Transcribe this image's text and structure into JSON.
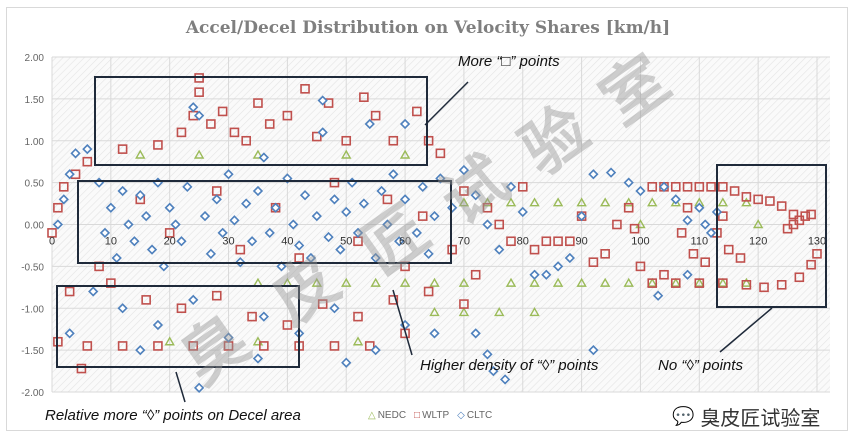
{
  "chart_data": {
    "type": "scatter",
    "title": "Accel/Decel Distribution on Velocity Shares [km/h]",
    "xlabel": "",
    "ylabel": "",
    "xlim": [
      0,
      130
    ],
    "ylim": [
      -2,
      2
    ],
    "x_ticks": [
      "0",
      "10",
      "20",
      "30",
      "40",
      "50",
      "60",
      "70",
      "80",
      "90",
      "100",
      "110",
      "120",
      "130"
    ],
    "y_ticks": [
      "2.00",
      "1.50",
      "1.00",
      "0.50",
      "0.00",
      "-0.50",
      "-1.00",
      "-1.50",
      "-2.00"
    ],
    "grid": true,
    "legend_position": "bottom",
    "series": [
      {
        "name": "NEDC",
        "marker": "triangle",
        "color": "#9bbb59",
        "points": [
          [
            15,
            0.83
          ],
          [
            25,
            0.83
          ],
          [
            35,
            0.83
          ],
          [
            50,
            0.83
          ],
          [
            60,
            0.83
          ],
          [
            70,
            0.26
          ],
          [
            74,
            0.26
          ],
          [
            78,
            0.26
          ],
          [
            82,
            0.26
          ],
          [
            86,
            0.26
          ],
          [
            90,
            0.26
          ],
          [
            94,
            0.26
          ],
          [
            98,
            0.26
          ],
          [
            102,
            0.26
          ],
          [
            106,
            0.26
          ],
          [
            110,
            0.26
          ],
          [
            114,
            0.26
          ],
          [
            118,
            0.26
          ],
          [
            100,
            0.0
          ],
          [
            120,
            0.0
          ],
          [
            35,
            -0.7
          ],
          [
            40,
            -0.7
          ],
          [
            45,
            -0.7
          ],
          [
            50,
            -0.7
          ],
          [
            55,
            -0.7
          ],
          [
            60,
            -0.7
          ],
          [
            65,
            -0.7
          ],
          [
            70,
            -0.7
          ],
          [
            78,
            -0.7
          ],
          [
            82,
            -0.7
          ],
          [
            86,
            -0.7
          ],
          [
            90,
            -0.7
          ],
          [
            94,
            -0.7
          ],
          [
            98,
            -0.7
          ],
          [
            102,
            -0.7
          ],
          [
            106,
            -0.7
          ],
          [
            110,
            -0.7
          ],
          [
            114,
            -0.7
          ],
          [
            118,
            -0.7
          ],
          [
            65,
            -1.05
          ],
          [
            70,
            -1.05
          ],
          [
            76,
            -1.05
          ],
          [
            82,
            -1.05
          ],
          [
            20,
            -1.4
          ],
          [
            35,
            -1.4
          ],
          [
            52,
            -1.4
          ]
        ]
      },
      {
        "name": "WLTP",
        "marker": "square",
        "color": "#c0504d",
        "points": [
          [
            0,
            -0.1
          ],
          [
            1,
            0.2
          ],
          [
            2,
            0.45
          ],
          [
            4,
            0.6
          ],
          [
            6,
            0.75
          ],
          [
            8,
            -0.5
          ],
          [
            3,
            -0.8
          ],
          [
            1,
            -1.4
          ],
          [
            12,
            0.9
          ],
          [
            18,
            0.95
          ],
          [
            22,
            1.1
          ],
          [
            24,
            1.3
          ],
          [
            25,
            1.58
          ],
          [
            25,
            1.75
          ],
          [
            27,
            1.2
          ],
          [
            29,
            1.35
          ],
          [
            31,
            1.1
          ],
          [
            33,
            1.0
          ],
          [
            35,
            1.45
          ],
          [
            37,
            1.2
          ],
          [
            40,
            1.3
          ],
          [
            43,
            1.62
          ],
          [
            45,
            1.05
          ],
          [
            47,
            1.45
          ],
          [
            50,
            1.0
          ],
          [
            53,
            1.52
          ],
          [
            55,
            1.3
          ],
          [
            58,
            1.0
          ],
          [
            62,
            1.35
          ],
          [
            64,
            1.0
          ],
          [
            66,
            0.85
          ],
          [
            15,
            0.3
          ],
          [
            20,
            -0.1
          ],
          [
            28,
            0.4
          ],
          [
            32,
            -0.3
          ],
          [
            38,
            0.2
          ],
          [
            42,
            -0.4
          ],
          [
            48,
            0.5
          ],
          [
            52,
            -0.2
          ],
          [
            57,
            0.3
          ],
          [
            60,
            -0.5
          ],
          [
            63,
            0.1
          ],
          [
            68,
            -0.3
          ],
          [
            70,
            0.4
          ],
          [
            72,
            -0.6
          ],
          [
            74,
            0.2
          ],
          [
            76,
            0.0
          ],
          [
            78,
            -0.2
          ],
          [
            80,
            0.45
          ],
          [
            82,
            -0.3
          ],
          [
            84,
            -0.2
          ],
          [
            86,
            -0.2
          ],
          [
            88,
            -0.2
          ],
          [
            90,
            0.1
          ],
          [
            92,
            -0.45
          ],
          [
            94,
            -0.35
          ],
          [
            96,
            0.0
          ],
          [
            98,
            0.2
          ],
          [
            99,
            -0.05
          ],
          [
            100,
            -0.5
          ],
          [
            102,
            0.45
          ],
          [
            104,
            0.45
          ],
          [
            106,
            0.45
          ],
          [
            108,
            0.45
          ],
          [
            110,
            0.45
          ],
          [
            112,
            0.45
          ],
          [
            114,
            0.45
          ],
          [
            116,
            0.4
          ],
          [
            118,
            0.33
          ],
          [
            120,
            0.3
          ],
          [
            122,
            0.28
          ],
          [
            124,
            0.22
          ],
          [
            126,
            0.12
          ],
          [
            127,
            0.05
          ],
          [
            128,
            0.1
          ],
          [
            129,
            0.12
          ],
          [
            126,
            0.0
          ],
          [
            125,
            -0.05
          ],
          [
            114,
            0.1
          ],
          [
            113,
            -0.1
          ],
          [
            115,
            -0.3
          ],
          [
            117,
            -0.4
          ],
          [
            108,
            0.2
          ],
          [
            107,
            -0.1
          ],
          [
            109,
            -0.35
          ],
          [
            111,
            -0.45
          ],
          [
            104,
            -0.6
          ],
          [
            102,
            -0.7
          ],
          [
            106,
            -0.7
          ],
          [
            110,
            -0.7
          ],
          [
            114,
            -0.7
          ],
          [
            118,
            -0.72
          ],
          [
            121,
            -0.75
          ],
          [
            124,
            -0.72
          ],
          [
            127,
            -0.63
          ],
          [
            129,
            -0.48
          ],
          [
            130,
            -0.35
          ],
          [
            10,
            -0.7
          ],
          [
            16,
            -0.9
          ],
          [
            22,
            -1.0
          ],
          [
            28,
            -0.85
          ],
          [
            34,
            -1.1
          ],
          [
            40,
            -1.2
          ],
          [
            46,
            -0.95
          ],
          [
            52,
            -1.1
          ],
          [
            58,
            -0.9
          ],
          [
            64,
            -0.8
          ],
          [
            6,
            -1.45
          ],
          [
            12,
            -1.45
          ],
          [
            18,
            -1.45
          ],
          [
            24,
            -1.45
          ],
          [
            30,
            -1.45
          ],
          [
            36,
            -1.45
          ],
          [
            42,
            -1.45
          ],
          [
            48,
            -1.45
          ],
          [
            54,
            -1.45
          ],
          [
            60,
            -1.3
          ],
          [
            5,
            -1.72
          ],
          [
            70,
            -0.95
          ]
        ]
      },
      {
        "name": "CLTC",
        "marker": "diamond",
        "color": "#4f81bd",
        "points": [
          [
            1,
            0.0
          ],
          [
            2,
            0.3
          ],
          [
            3,
            0.6
          ],
          [
            4,
            0.85
          ],
          [
            6,
            0.9
          ],
          [
            8,
            0.5
          ],
          [
            9,
            -0.1
          ],
          [
            10,
            0.2
          ],
          [
            11,
            -0.4
          ],
          [
            12,
            0.4
          ],
          [
            13,
            0.0
          ],
          [
            14,
            -0.2
          ],
          [
            15,
            0.35
          ],
          [
            16,
            0.1
          ],
          [
            17,
            -0.3
          ],
          [
            18,
            0.5
          ],
          [
            19,
            -0.5
          ],
          [
            20,
            0.2
          ],
          [
            21,
            0.0
          ],
          [
            22,
            -0.2
          ],
          [
            23,
            0.45
          ],
          [
            24,
            1.4
          ],
          [
            25,
            1.3
          ],
          [
            26,
            0.1
          ],
          [
            27,
            -0.35
          ],
          [
            28,
            0.3
          ],
          [
            29,
            -0.1
          ],
          [
            30,
            0.6
          ],
          [
            31,
            0.05
          ],
          [
            32,
            -0.45
          ],
          [
            33,
            0.25
          ],
          [
            34,
            -0.2
          ],
          [
            35,
            0.4
          ],
          [
            36,
            0.8
          ],
          [
            37,
            -0.1
          ],
          [
            38,
            0.2
          ],
          [
            39,
            -0.5
          ],
          [
            40,
            0.55
          ],
          [
            41,
            0.0
          ],
          [
            42,
            -0.25
          ],
          [
            43,
            0.35
          ],
          [
            44,
            -0.4
          ],
          [
            45,
            0.1
          ],
          [
            46,
            1.1
          ],
          [
            47,
            -0.15
          ],
          [
            48,
            0.3
          ],
          [
            49,
            -0.3
          ],
          [
            50,
            0.15
          ],
          [
            51,
            0.5
          ],
          [
            52,
            -0.1
          ],
          [
            53,
            0.25
          ],
          [
            54,
            1.2
          ],
          [
            55,
            -0.4
          ],
          [
            56,
            0.4
          ],
          [
            57,
            0.0
          ],
          [
            58,
            0.6
          ],
          [
            59,
            -0.2
          ],
          [
            60,
            0.3
          ],
          [
            62,
            -0.1
          ],
          [
            63,
            0.45
          ],
          [
            64,
            -0.35
          ],
          [
            65,
            0.1
          ],
          [
            66,
            0.55
          ],
          [
            68,
            0.2
          ],
          [
            70,
            0.65
          ],
          [
            72,
            0.35
          ],
          [
            74,
            0.0
          ],
          [
            76,
            -0.3
          ],
          [
            78,
            0.45
          ],
          [
            80,
            0.15
          ],
          [
            82,
            -0.6
          ],
          [
            84,
            -0.6
          ],
          [
            86,
            -0.5
          ],
          [
            88,
            -0.4
          ],
          [
            90,
            0.1
          ],
          [
            92,
            0.6
          ],
          [
            95,
            0.62
          ],
          [
            98,
            0.5
          ],
          [
            100,
            0.4
          ],
          [
            104,
            0.45
          ],
          [
            106,
            0.3
          ],
          [
            108,
            0.05
          ],
          [
            110,
            0.2
          ],
          [
            111,
            0.0
          ],
          [
            112,
            -0.1
          ],
          [
            113,
            0.15
          ],
          [
            108,
            -0.6
          ],
          [
            103,
            -0.85
          ],
          [
            7,
            -0.8
          ],
          [
            12,
            -1.0
          ],
          [
            18,
            -1.2
          ],
          [
            24,
            -0.9
          ],
          [
            30,
            -1.35
          ],
          [
            36,
            -1.1
          ],
          [
            42,
            -1.3
          ],
          [
            48,
            -1.0
          ],
          [
            55,
            -1.5
          ],
          [
            60,
            -1.2
          ],
          [
            65,
            -1.3
          ],
          [
            72,
            -1.3
          ],
          [
            74,
            -1.55
          ],
          [
            75,
            -1.75
          ],
          [
            77,
            -1.85
          ],
          [
            50,
            -1.65
          ],
          [
            25,
            -1.95
          ],
          [
            15,
            -1.5
          ],
          [
            35,
            -1.6
          ],
          [
            3,
            -1.3
          ],
          [
            46,
            1.48
          ],
          [
            60,
            1.2
          ],
          [
            92,
            -1.5
          ]
        ]
      }
    ]
  },
  "annotations": {
    "more_wltp": "More “□” points",
    "higher_density": "Higher density of “◊” points",
    "no_cltc": "No “◊” points",
    "relative_more": "Relative more “◊” points on Decel area"
  },
  "watermark": {
    "text": "臭皮匠试验室",
    "logo_text": "臭皮匠试验室"
  },
  "colors": {
    "title": "#7f7f7f",
    "grid": "#d9d9d9",
    "box": "#1f2a3a"
  }
}
